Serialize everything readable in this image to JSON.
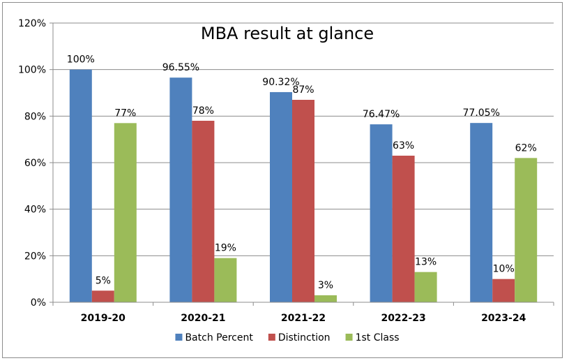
{
  "chart_data": {
    "type": "bar",
    "title": "MBA result at glance",
    "xlabel": "",
    "ylabel": "",
    "ylim": [
      0,
      120
    ],
    "y_ticks": [
      "0%",
      "20%",
      "40%",
      "60%",
      "80%",
      "100%",
      "120%"
    ],
    "y_tick_values": [
      0,
      20,
      40,
      60,
      80,
      100,
      120
    ],
    "grid": true,
    "legend_position": "bottom",
    "categories": [
      "2019-20",
      "2020-21",
      "2021-22",
      "2022-23",
      "2023-24"
    ],
    "series": [
      {
        "name": "Batch Percent",
        "color": "#4f81bd",
        "values": [
          100,
          96.55,
          90.32,
          76.47,
          77.05
        ],
        "labels": [
          "100%",
          "96.55%",
          "90.32%",
          "76.47%",
          "77.05%"
        ]
      },
      {
        "name": "Distinction",
        "color": "#c0504d",
        "values": [
          5,
          78,
          87,
          63,
          10
        ],
        "labels": [
          "5%",
          "78%",
          "87%",
          "63%",
          "10%"
        ]
      },
      {
        "name": "1st Class",
        "color": "#9bbb59",
        "values": [
          77,
          19,
          3,
          13,
          62
        ],
        "labels": [
          "77%",
          "19%",
          "3%",
          "13%",
          "62%"
        ]
      }
    ]
  }
}
